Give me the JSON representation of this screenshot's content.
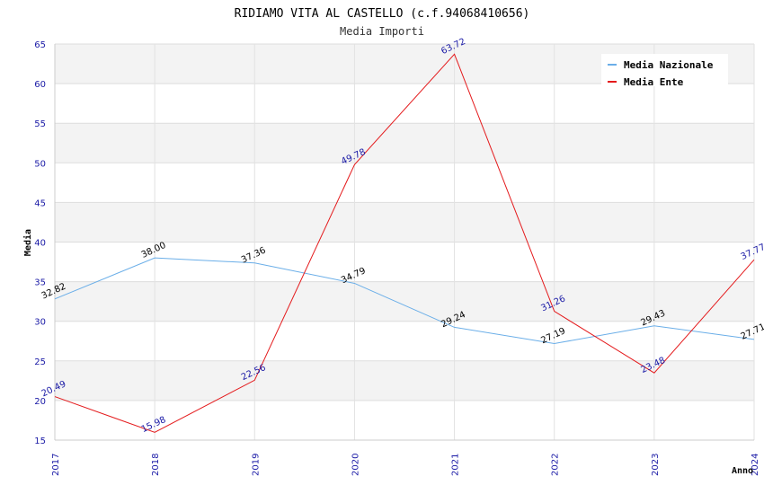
{
  "chart_data": {
    "type": "line",
    "title": "RIDIAMO VITA AL CASTELLO (c.f.94068410656)",
    "subtitle": "Media Importi",
    "xlabel": "Anno",
    "ylabel": "Media",
    "categories": [
      "2017",
      "2018",
      "2019",
      "2020",
      "2021",
      "2022",
      "2023",
      "2024"
    ],
    "ylim": [
      15,
      65
    ],
    "yticks": [
      15,
      20,
      25,
      30,
      35,
      40,
      45,
      50,
      55,
      60,
      65
    ],
    "legend_position": "top-right",
    "series": [
      {
        "name": "Media Nazionale",
        "color": "#6aaee8",
        "label_color": "#000000",
        "values": [
          32.82,
          38.0,
          37.36,
          34.79,
          29.24,
          27.19,
          29.43,
          27.71
        ],
        "labels": [
          "32.82",
          "38.00",
          "37.36",
          "34.79",
          "29.24",
          "27.19",
          "29.43",
          "27.71"
        ]
      },
      {
        "name": "Media Ente",
        "color": "#e41a1c",
        "label_color": "#1a1aa6",
        "values": [
          20.49,
          15.98,
          22.56,
          49.78,
          63.72,
          31.26,
          23.48,
          37.77
        ],
        "labels": [
          "20.49",
          "15.98",
          "22.56",
          "49.78",
          "63.72",
          "31.26",
          "23.48",
          "37.77"
        ]
      }
    ]
  }
}
